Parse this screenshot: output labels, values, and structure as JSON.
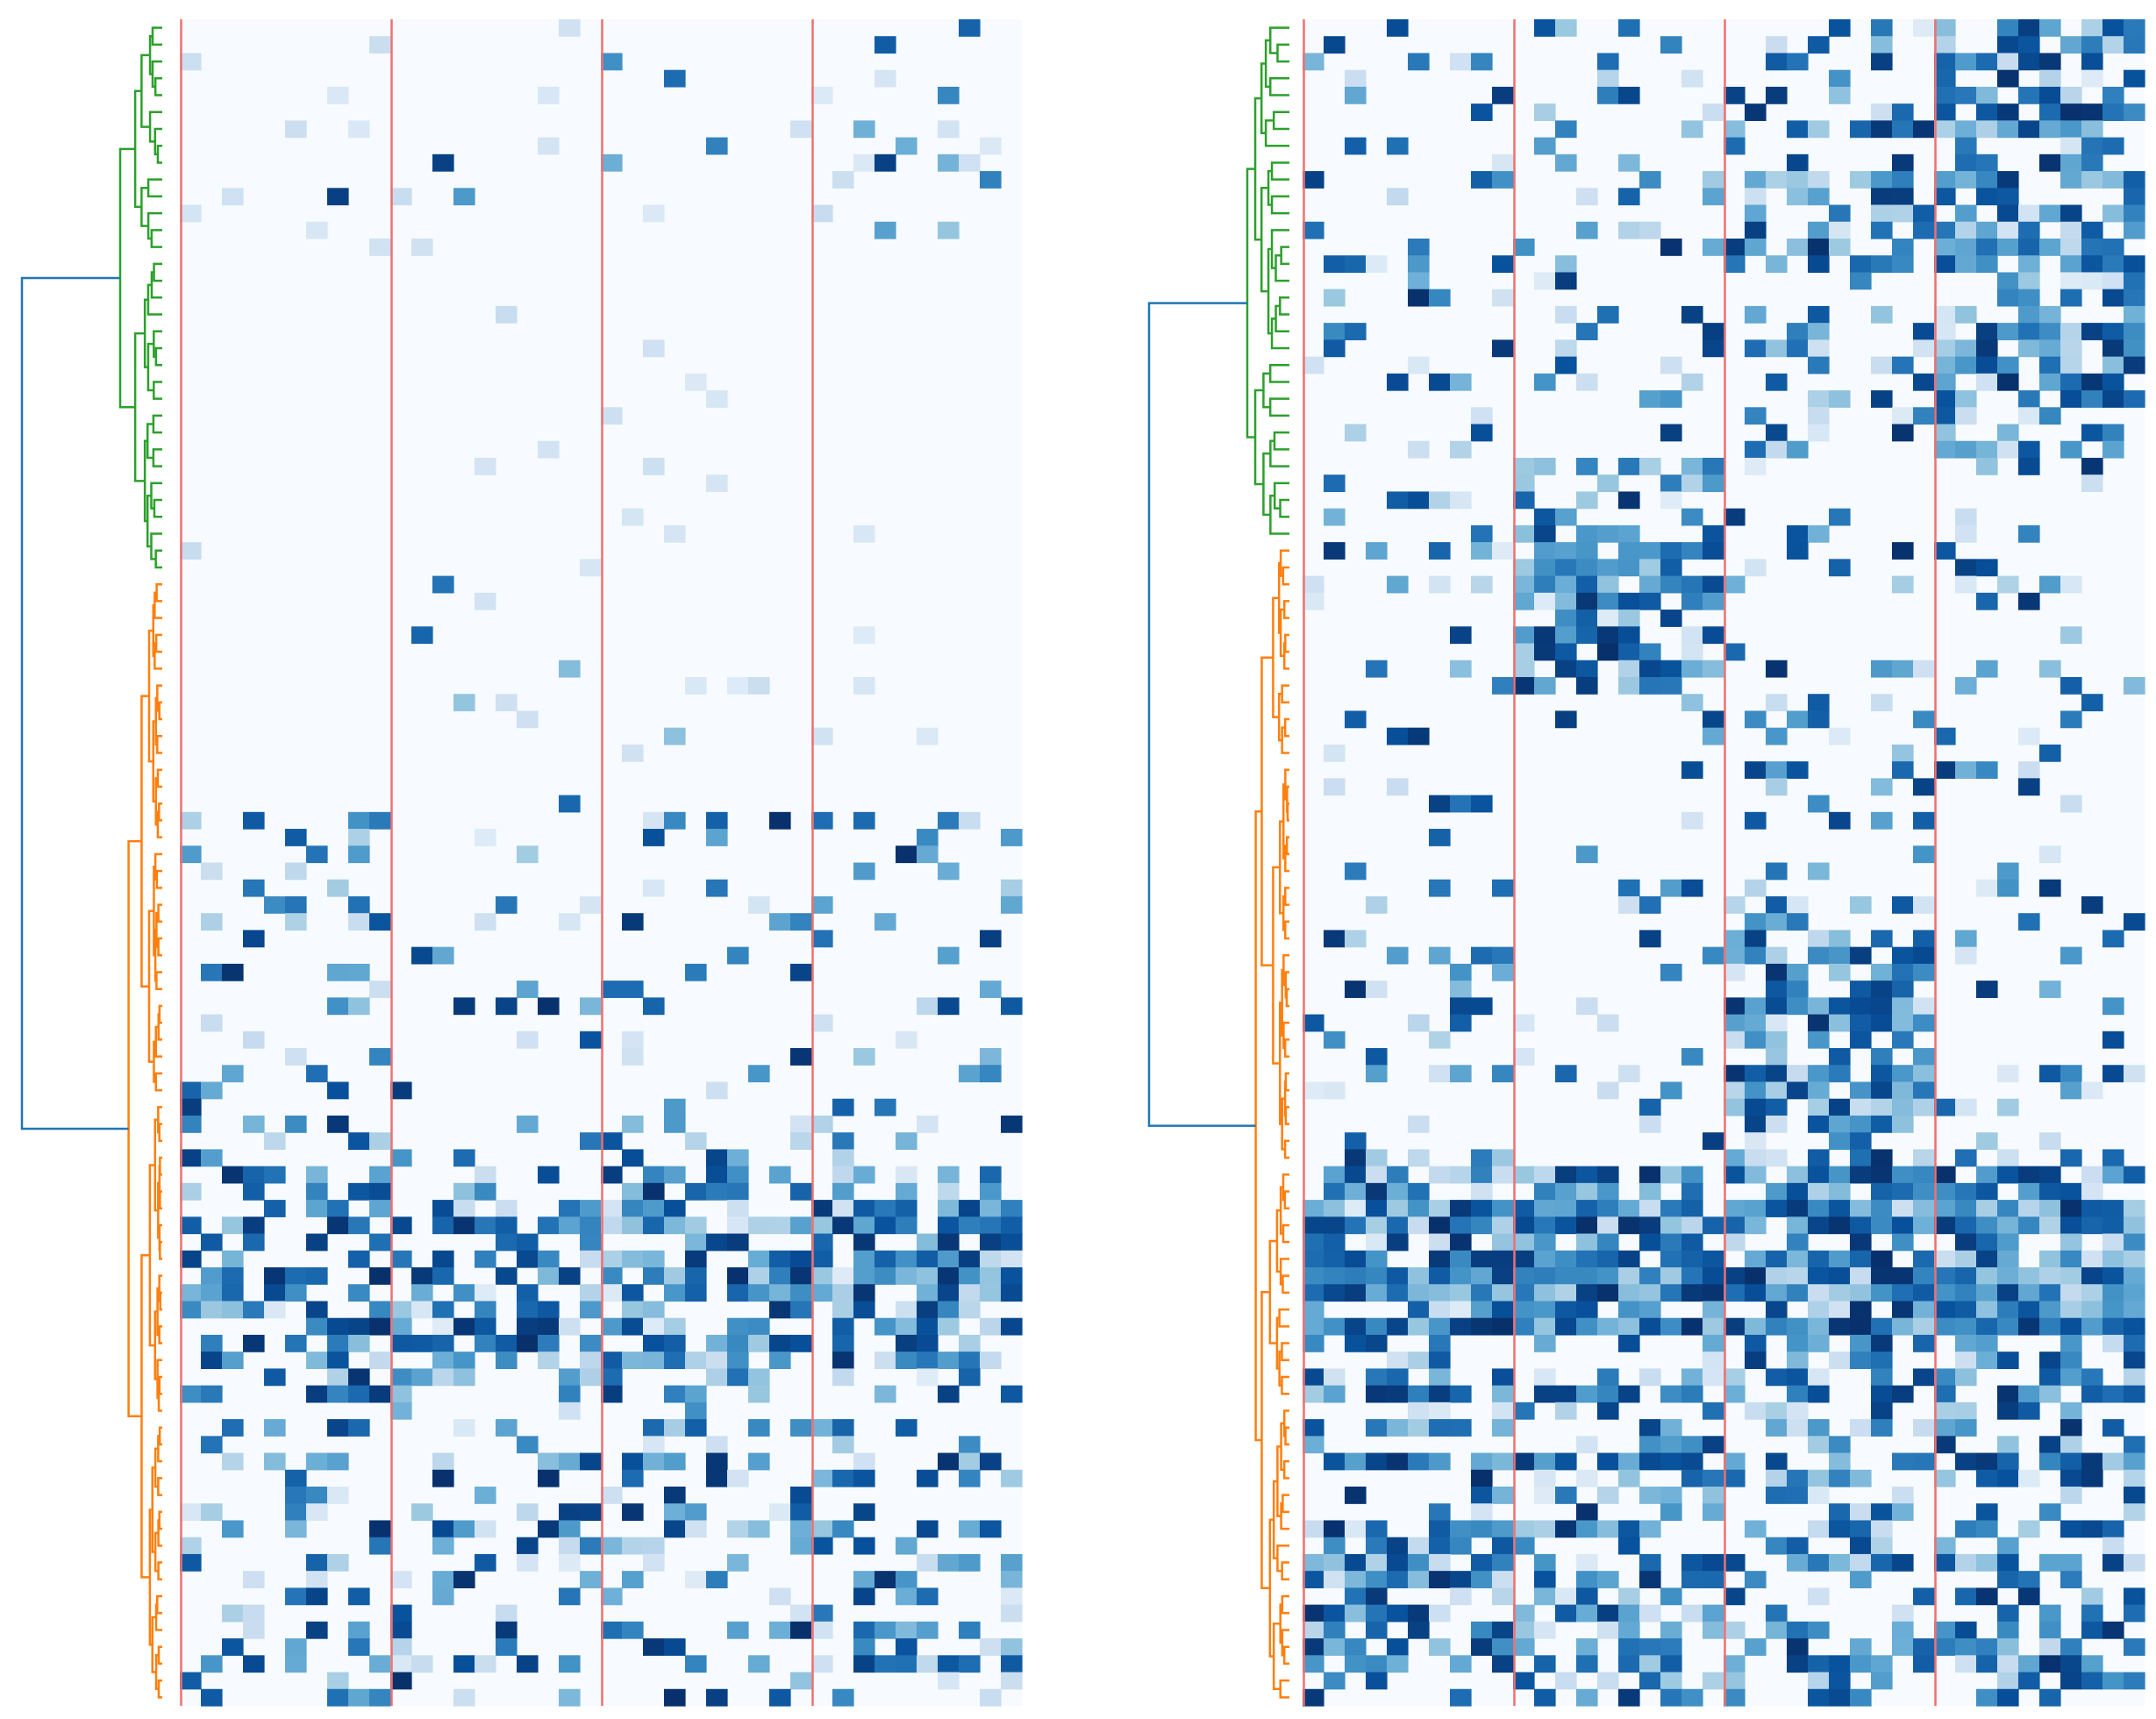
{
  "chart_data": [
    {
      "type": "heatmap",
      "panel": "left",
      "rows": 100,
      "columns": 40,
      "column_groups": 4,
      "colormap": "Blues",
      "group_separator_color": "#f07070",
      "dendrogram": {
        "orientation": "left",
        "root_color": "#1f77b4",
        "clusters": [
          {
            "color": "#2ca02c",
            "rows": 33
          },
          {
            "color": "#ff7f0e",
            "rows": 67
          }
        ]
      },
      "row_bands": [
        {
          "rows": [
            0,
            14
          ],
          "level": "sparse",
          "density": [
            0.02,
            0.02,
            0.02,
            0.06
          ]
        },
        {
          "rows": [
            14,
            47
          ],
          "level": "near-empty",
          "density": [
            0.005,
            0.005,
            0.005,
            0.005
          ]
        },
        {
          "rows": [
            47,
            68
          ],
          "level": "moderate",
          "density": [
            0.18,
            0.1,
            0.14,
            0.16
          ]
        },
        {
          "rows": [
            68,
            80
          ],
          "level": "dense",
          "density": [
            0.55,
            0.55,
            0.65,
            0.75
          ]
        },
        {
          "rows": [
            80,
            100
          ],
          "level": "moderate",
          "density": [
            0.28,
            0.22,
            0.3,
            0.38
          ]
        }
      ]
    },
    {
      "type": "heatmap",
      "panel": "right",
      "rows": 100,
      "columns": 40,
      "column_groups": 4,
      "colormap": "Blues",
      "group_separator_color": "#f07070",
      "dendrogram": {
        "orientation": "left",
        "root_color": "#1f77b4",
        "clusters": [
          {
            "color": "#2ca02c",
            "rows": 31
          },
          {
            "color": "#ff7f0e",
            "rows": 69
          }
        ]
      },
      "row_bands": [
        {
          "rows": [
            0,
            26
          ],
          "level": "mixed",
          "density": [
            0.18,
            0.18,
            0.3,
            0.55
          ]
        },
        {
          "rows": [
            26,
            40
          ],
          "level": "mixed",
          "density": [
            0.12,
            0.6,
            0.08,
            0.1
          ]
        },
        {
          "rows": [
            40,
            54
          ],
          "level": "sparse",
          "density": [
            0.08,
            0.05,
            0.2,
            0.08
          ]
        },
        {
          "rows": [
            54,
            68
          ],
          "level": "mixed",
          "density": [
            0.15,
            0.08,
            0.6,
            0.15
          ]
        },
        {
          "rows": [
            68,
            78
          ],
          "level": "dense",
          "density": [
            0.8,
            0.85,
            0.85,
            0.85
          ]
        },
        {
          "rows": [
            78,
            100
          ],
          "level": "mixed",
          "density": [
            0.55,
            0.45,
            0.45,
            0.55
          ]
        }
      ]
    }
  ]
}
